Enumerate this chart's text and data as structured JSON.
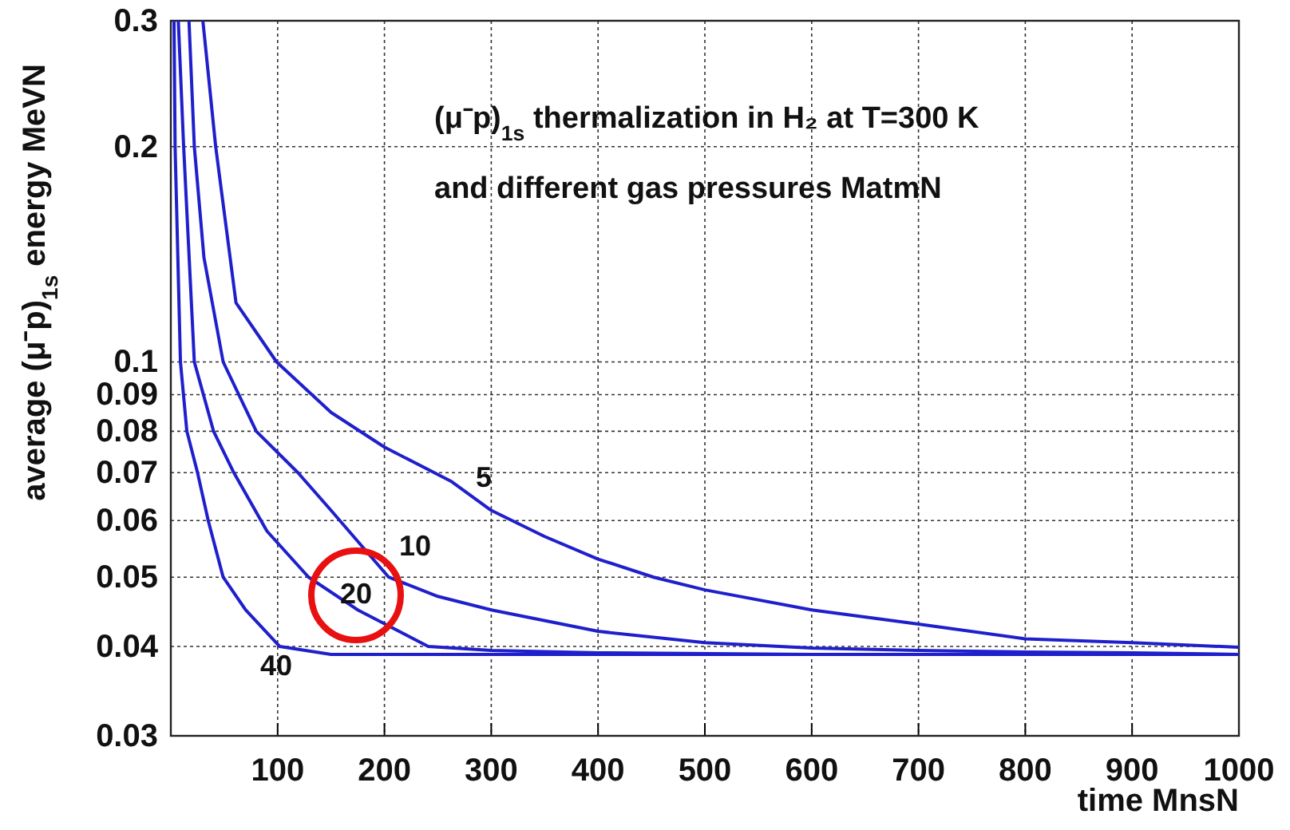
{
  "chart_data": {
    "type": "line",
    "title": "(μ⁻p)$_{1s}$ thermalization in H₂ at T=300 K",
    "subtitle": "and different gas pressures MatmN",
    "xlabel": "time MnsN",
    "ylabel": "average (μ⁻p)$_{1s}$ energy MeVN",
    "log": "y",
    "grid": true,
    "line_style": "solid",
    "marker": "none",
    "xlim": [
      0,
      1000
    ],
    "ylim": [
      0.03,
      0.3
    ],
    "xticks": [
      {
        "value": 0,
        "label": null
      },
      100,
      200,
      300,
      400,
      500,
      600,
      700,
      800,
      900,
      1000
    ],
    "yticks": [
      0.03,
      0.04,
      0.05,
      0.06,
      0.07,
      0.08,
      0.09,
      0.1,
      0.2,
      0.3
    ],
    "series": [
      {
        "name": "5",
        "color": "#1f1fcc",
        "x": [
          30,
          42,
          61,
          99,
          150,
          200,
          263,
          300,
          350,
          400,
          452,
          500,
          600,
          700,
          800,
          900,
          1000
        ],
        "values": [
          0.3,
          0.2,
          0.121,
          0.1,
          0.085,
          0.076,
          0.068,
          0.062,
          0.057,
          0.053,
          0.05,
          0.048,
          0.045,
          0.043,
          0.041,
          0.0405,
          0.0399
        ]
      },
      {
        "name": "10",
        "color": "#1f1fcc",
        "x": [
          17,
          22,
          31,
          49,
          80,
          119,
          150,
          204,
          250,
          300,
          400,
          500,
          600,
          700,
          800,
          900,
          1000
        ],
        "values": [
          0.3,
          0.2,
          0.14,
          0.1,
          0.08,
          0.07,
          0.062,
          0.05,
          0.047,
          0.045,
          0.042,
          0.0405,
          0.0398,
          0.0395,
          0.0393,
          0.0392,
          0.039
        ]
      },
      {
        "name": "20",
        "color": "#1f1fcc",
        "x": [
          7,
          12,
          22,
          40,
          59,
          90,
          129,
          175,
          241,
          300,
          400,
          600,
          800,
          1000
        ],
        "values": [
          0.3,
          0.2,
          0.1,
          0.08,
          0.07,
          0.058,
          0.05,
          0.045,
          0.04,
          0.0395,
          0.0392,
          0.039,
          0.039,
          0.039
        ]
      },
      {
        "name": "40",
        "color": "#1f1fcc",
        "x": [
          3,
          4,
          9,
          15,
          25,
          35,
          49,
          70,
          102,
          150,
          300,
          500,
          700,
          1000
        ],
        "values": [
          0.3,
          0.2,
          0.1,
          0.08,
          0.07,
          0.06,
          0.05,
          0.045,
          0.04,
          0.039,
          0.039,
          0.039,
          0.039,
          0.039
        ]
      }
    ]
  }
}
